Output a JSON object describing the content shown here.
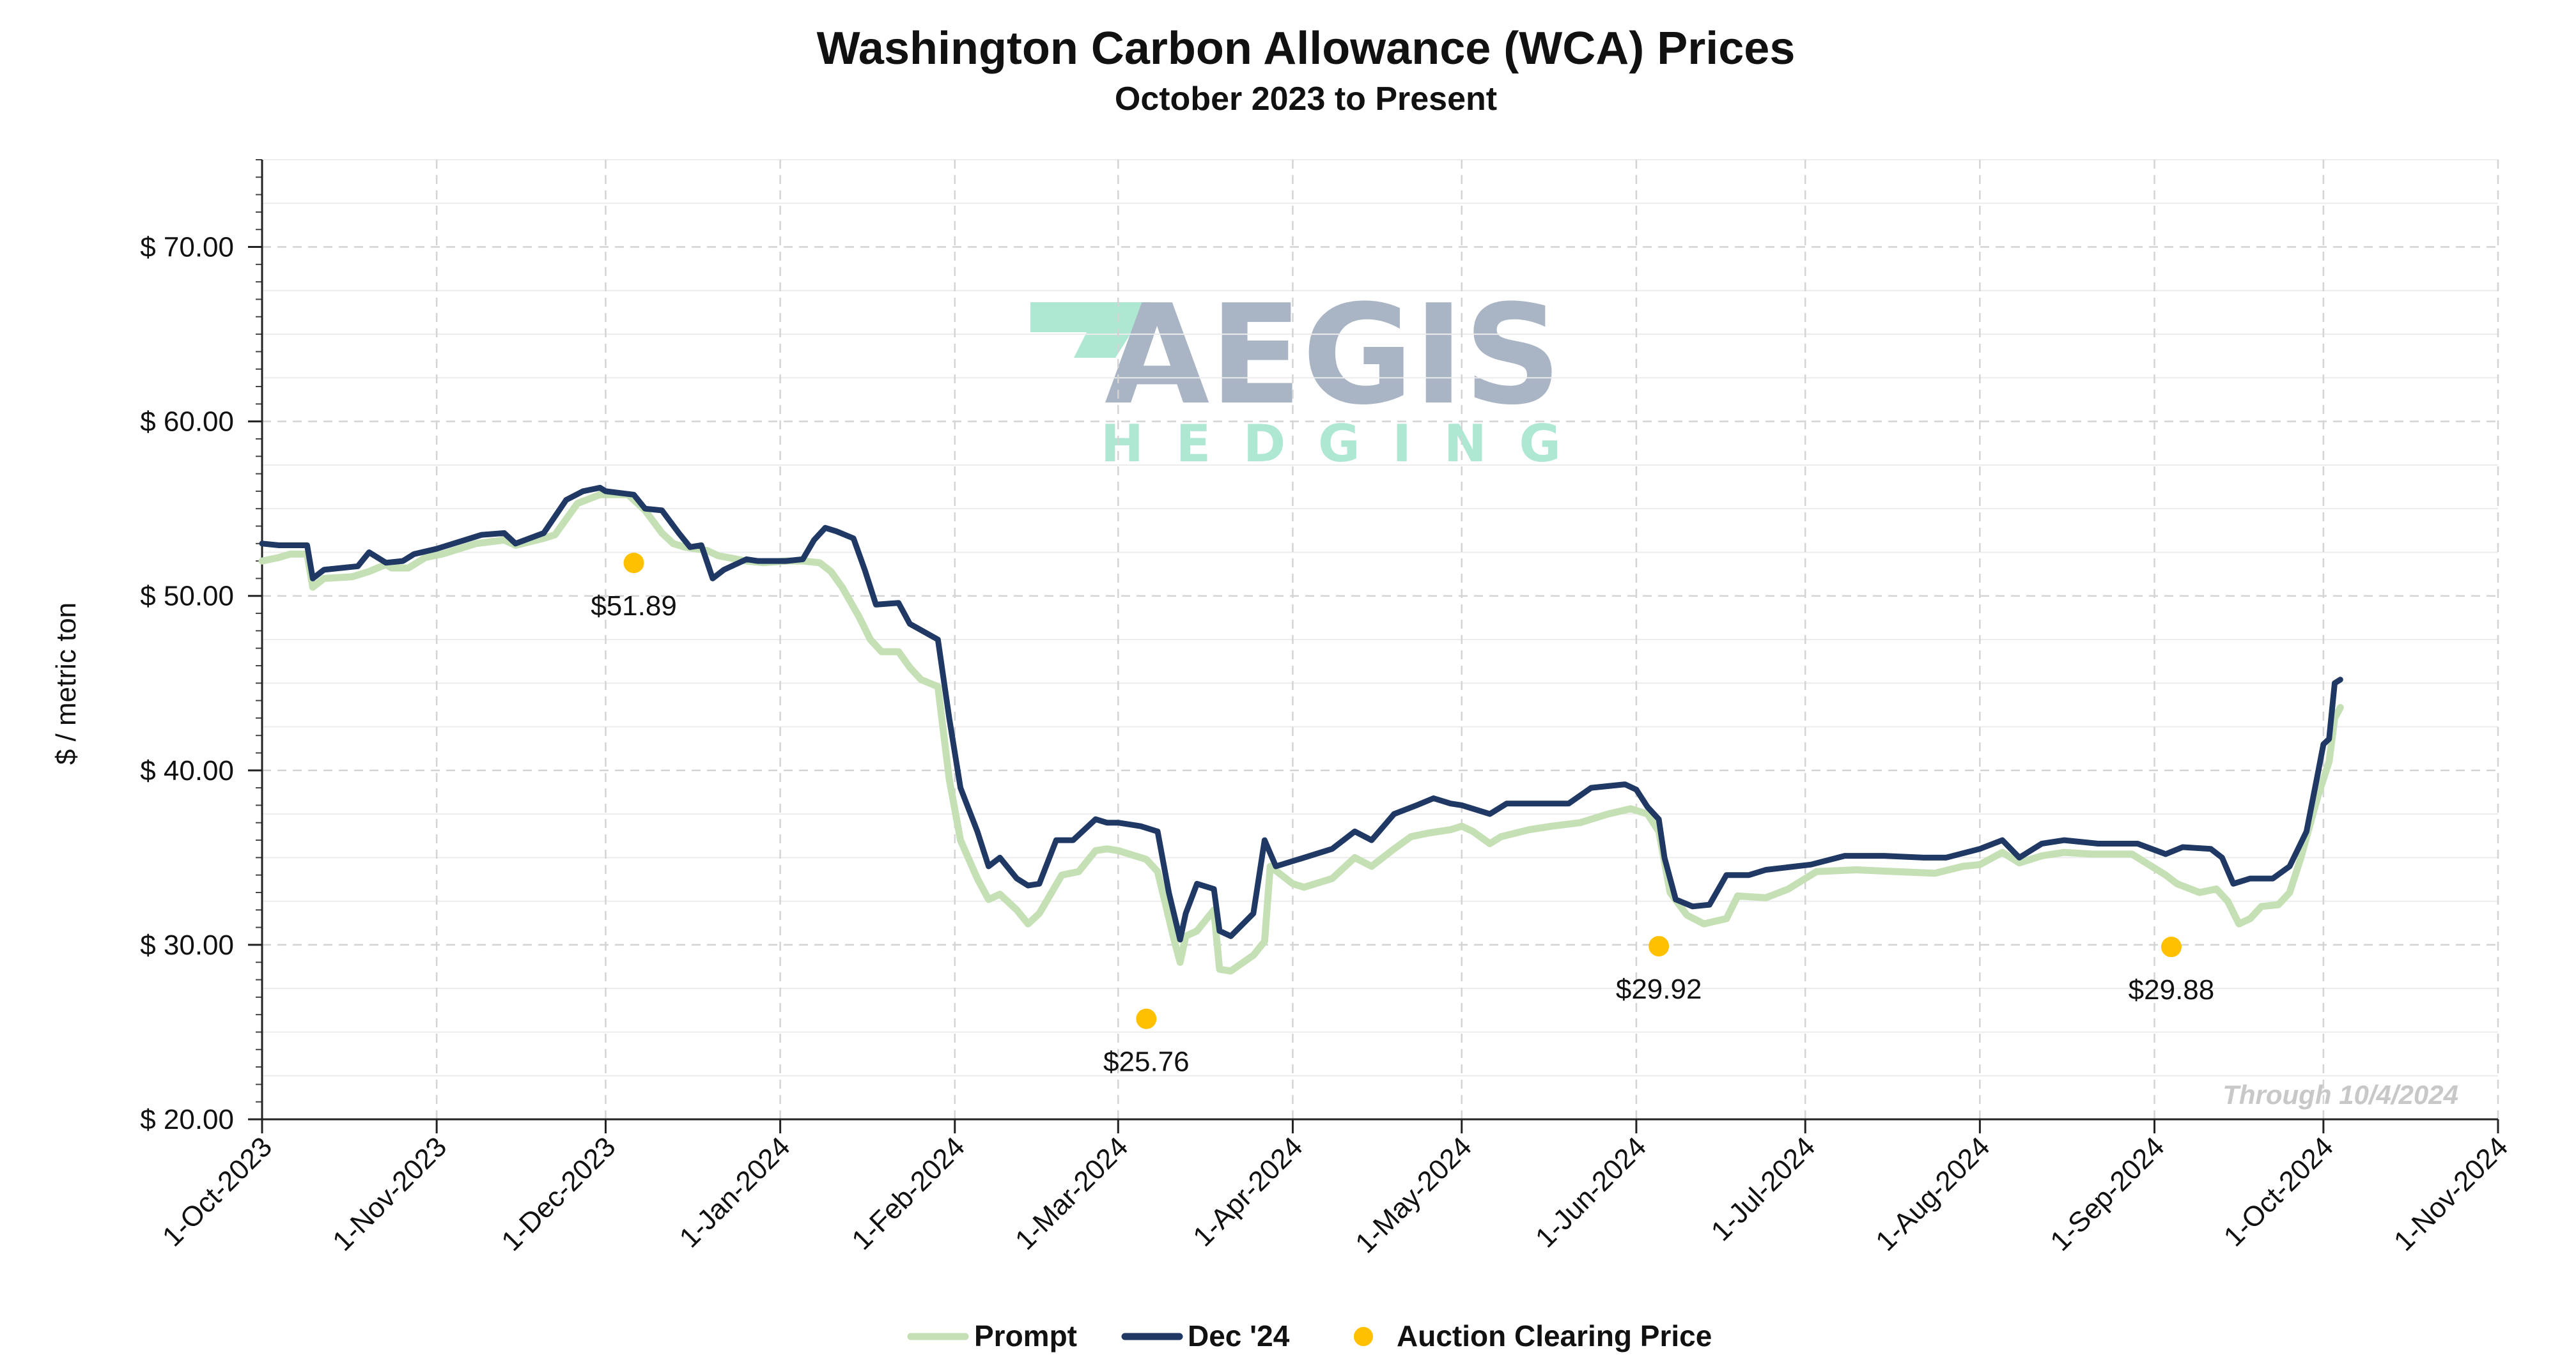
{
  "chart_data": {
    "type": "line",
    "title": "Washington Carbon Allowance (WCA) Prices",
    "subtitle": "October 2023 to Present",
    "ylabel": "$ / metric ton",
    "xlabel": "",
    "ylim": [
      20,
      75
    ],
    "xlim": [
      "2023-10-01",
      "2024-11-01"
    ],
    "y_ticks": [
      20,
      30,
      40,
      50,
      60,
      70
    ],
    "y_tick_labels": [
      "$ 20.00",
      "$ 30.00",
      "$ 40.00",
      "$ 50.00",
      "$ 60.00",
      "$ 70.00"
    ],
    "x_ticks": [
      "2023-10-01",
      "2023-11-01",
      "2023-12-01",
      "2024-01-01",
      "2024-02-01",
      "2024-03-01",
      "2024-04-01",
      "2024-05-01",
      "2024-06-01",
      "2024-07-01",
      "2024-08-01",
      "2024-09-01",
      "2024-10-01",
      "2024-11-01"
    ],
    "x_tick_labels": [
      "1-Oct-2023",
      "1-Nov-2023",
      "1-Dec-2023",
      "1-Jan-2024",
      "1-Feb-2024",
      "1-Mar-2024",
      "1-Apr-2024",
      "1-May-2024",
      "1-Jun-2024",
      "1-Jul-2024",
      "1-Aug-2024",
      "1-Sep-2024",
      "1-Oct-2024",
      "1-Nov-2024"
    ],
    "grid": true,
    "legend_position": "bottom-center",
    "annotation": "Through 10/4/2024",
    "series": [
      {
        "name": "Prompt",
        "color": "#c5e0b4",
        "points": [
          [
            "2023-10-01",
            52.0
          ],
          [
            "2023-10-04",
            52.2
          ],
          [
            "2023-10-06",
            52.4
          ],
          [
            "2023-10-09",
            52.4
          ],
          [
            "2023-10-10",
            50.5
          ],
          [
            "2023-10-12",
            51.0
          ],
          [
            "2023-10-17",
            51.1
          ],
          [
            "2023-10-20",
            51.4
          ],
          [
            "2023-10-23",
            51.8
          ],
          [
            "2023-10-24",
            51.6
          ],
          [
            "2023-10-27",
            51.6
          ],
          [
            "2023-10-30",
            52.2
          ],
          [
            "2023-11-02",
            52.4
          ],
          [
            "2023-11-06",
            52.8
          ],
          [
            "2023-11-08",
            53.0
          ],
          [
            "2023-11-13",
            53.2
          ],
          [
            "2023-11-15",
            52.9
          ],
          [
            "2023-11-20",
            53.3
          ],
          [
            "2023-11-22",
            53.5
          ],
          [
            "2023-11-26",
            55.3
          ],
          [
            "2023-11-30",
            55.8
          ],
          [
            "2023-12-05",
            55.8
          ],
          [
            "2023-12-08",
            54.9
          ],
          [
            "2023-12-11",
            53.6
          ],
          [
            "2023-12-13",
            53.0
          ],
          [
            "2023-12-15",
            52.8
          ],
          [
            "2023-12-19",
            52.6
          ],
          [
            "2023-12-21",
            52.3
          ],
          [
            "2023-12-26",
            52.0
          ],
          [
            "2023-12-29",
            51.9
          ],
          [
            "2024-01-02",
            52.0
          ],
          [
            "2024-01-05",
            52.0
          ],
          [
            "2024-01-08",
            51.9
          ],
          [
            "2024-01-10",
            51.4
          ],
          [
            "2024-01-12",
            50.5
          ],
          [
            "2024-01-15",
            48.8
          ],
          [
            "2024-01-17",
            47.5
          ],
          [
            "2024-01-19",
            46.8
          ],
          [
            "2024-01-22",
            46.8
          ],
          [
            "2024-01-24",
            45.9
          ],
          [
            "2024-01-26",
            45.2
          ],
          [
            "2024-01-29",
            44.8
          ],
          [
            "2024-01-31",
            39.5
          ],
          [
            "2024-02-02",
            36.0
          ],
          [
            "2024-02-05",
            33.8
          ],
          [
            "2024-02-07",
            32.6
          ],
          [
            "2024-02-09",
            32.9
          ],
          [
            "2024-02-12",
            32.0
          ],
          [
            "2024-02-14",
            31.2
          ],
          [
            "2024-02-16",
            31.8
          ],
          [
            "2024-02-20",
            34.0
          ],
          [
            "2024-02-23",
            34.2
          ],
          [
            "2024-02-26",
            35.4
          ],
          [
            "2024-02-28",
            35.5
          ],
          [
            "2024-03-01",
            35.4
          ],
          [
            "2024-03-04",
            35.1
          ],
          [
            "2024-03-06",
            34.9
          ],
          [
            "2024-03-08",
            34.2
          ],
          [
            "2024-03-11",
            30.2
          ],
          [
            "2024-03-12",
            29.0
          ],
          [
            "2024-03-13",
            30.5
          ],
          [
            "2024-03-15",
            30.8
          ],
          [
            "2024-03-18",
            32.0
          ],
          [
            "2024-03-19",
            28.6
          ],
          [
            "2024-03-21",
            28.5
          ],
          [
            "2024-03-25",
            29.4
          ],
          [
            "2024-03-27",
            30.2
          ],
          [
            "2024-03-28",
            34.5
          ],
          [
            "2024-04-01",
            33.5
          ],
          [
            "2024-04-03",
            33.3
          ],
          [
            "2024-04-08",
            33.8
          ],
          [
            "2024-04-12",
            35.0
          ],
          [
            "2024-04-15",
            34.5
          ],
          [
            "2024-04-19",
            35.5
          ],
          [
            "2024-04-22",
            36.2
          ],
          [
            "2024-04-25",
            36.4
          ],
          [
            "2024-04-29",
            36.6
          ],
          [
            "2024-05-01",
            36.8
          ],
          [
            "2024-05-03",
            36.5
          ],
          [
            "2024-05-06",
            35.8
          ],
          [
            "2024-05-08",
            36.2
          ],
          [
            "2024-05-13",
            36.6
          ],
          [
            "2024-05-17",
            36.8
          ],
          [
            "2024-05-22",
            37.0
          ],
          [
            "2024-05-27",
            37.5
          ],
          [
            "2024-05-31",
            37.8
          ],
          [
            "2024-06-03",
            37.5
          ],
          [
            "2024-06-05",
            36.5
          ],
          [
            "2024-06-07",
            33.0
          ],
          [
            "2024-06-10",
            31.7
          ],
          [
            "2024-06-13",
            31.2
          ],
          [
            "2024-06-17",
            31.5
          ],
          [
            "2024-06-19",
            32.8
          ],
          [
            "2024-06-24",
            32.7
          ],
          [
            "2024-06-28",
            33.2
          ],
          [
            "2024-07-03",
            34.2
          ],
          [
            "2024-07-10",
            34.3
          ],
          [
            "2024-07-17",
            34.2
          ],
          [
            "2024-07-24",
            34.1
          ],
          [
            "2024-07-29",
            34.5
          ],
          [
            "2024-08-01",
            34.6
          ],
          [
            "2024-08-05",
            35.3
          ],
          [
            "2024-08-08",
            34.7
          ],
          [
            "2024-08-12",
            35.1
          ],
          [
            "2024-08-16",
            35.3
          ],
          [
            "2024-08-21",
            35.2
          ],
          [
            "2024-08-28",
            35.2
          ],
          [
            "2024-09-03",
            34.0
          ],
          [
            "2024-09-05",
            33.5
          ],
          [
            "2024-09-09",
            33.0
          ],
          [
            "2024-09-12",
            33.2
          ],
          [
            "2024-09-14",
            32.5
          ],
          [
            "2024-09-16",
            31.2
          ],
          [
            "2024-09-18",
            31.5
          ],
          [
            "2024-09-20",
            32.2
          ],
          [
            "2024-09-23",
            32.3
          ],
          [
            "2024-09-25",
            33.0
          ],
          [
            "2024-09-27",
            35.0
          ],
          [
            "2024-09-30",
            38.5
          ],
          [
            "2024-10-02",
            40.5
          ],
          [
            "2024-10-03",
            43.0
          ],
          [
            "2024-10-04",
            43.6
          ]
        ]
      },
      {
        "name": "Dec '24",
        "color": "#1f3864",
        "points": [
          [
            "2023-10-01",
            53.0
          ],
          [
            "2023-10-04",
            52.9
          ],
          [
            "2023-10-09",
            52.9
          ],
          [
            "2023-10-10",
            51.0
          ],
          [
            "2023-10-12",
            51.5
          ],
          [
            "2023-10-18",
            51.7
          ],
          [
            "2023-10-20",
            52.5
          ],
          [
            "2023-10-23",
            51.9
          ],
          [
            "2023-10-26",
            52.0
          ],
          [
            "2023-10-28",
            52.4
          ],
          [
            "2023-11-01",
            52.7
          ],
          [
            "2023-11-06",
            53.2
          ],
          [
            "2023-11-09",
            53.5
          ],
          [
            "2023-11-13",
            53.6
          ],
          [
            "2023-11-15",
            53.0
          ],
          [
            "2023-11-20",
            53.6
          ],
          [
            "2023-11-24",
            55.5
          ],
          [
            "2023-11-27",
            56.0
          ],
          [
            "2023-11-30",
            56.2
          ],
          [
            "2023-12-01",
            56.0
          ],
          [
            "2023-12-06",
            55.8
          ],
          [
            "2023-12-08",
            55.0
          ],
          [
            "2023-12-11",
            54.9
          ],
          [
            "2023-12-14",
            53.6
          ],
          [
            "2023-12-16",
            52.8
          ],
          [
            "2023-12-18",
            52.9
          ],
          [
            "2023-12-20",
            51.0
          ],
          [
            "2023-12-22",
            51.5
          ],
          [
            "2023-12-26",
            52.1
          ],
          [
            "2023-12-28",
            52.0
          ],
          [
            "2024-01-02",
            52.0
          ],
          [
            "2024-01-05",
            52.1
          ],
          [
            "2024-01-07",
            53.2
          ],
          [
            "2024-01-09",
            53.9
          ],
          [
            "2024-01-11",
            53.7
          ],
          [
            "2024-01-14",
            53.3
          ],
          [
            "2024-01-16",
            51.5
          ],
          [
            "2024-01-18",
            49.5
          ],
          [
            "2024-01-22",
            49.6
          ],
          [
            "2024-01-24",
            48.4
          ],
          [
            "2024-01-29",
            47.5
          ],
          [
            "2024-01-31",
            43.0
          ],
          [
            "2024-02-02",
            39.0
          ],
          [
            "2024-02-05",
            36.5
          ],
          [
            "2024-02-07",
            34.5
          ],
          [
            "2024-02-09",
            35.0
          ],
          [
            "2024-02-12",
            33.8
          ],
          [
            "2024-02-14",
            33.4
          ],
          [
            "2024-02-16",
            33.5
          ],
          [
            "2024-02-19",
            36.0
          ],
          [
            "2024-02-22",
            36.0
          ],
          [
            "2024-02-26",
            37.2
          ],
          [
            "2024-02-28",
            37.0
          ],
          [
            "2024-03-01",
            37.0
          ],
          [
            "2024-03-05",
            36.8
          ],
          [
            "2024-03-08",
            36.5
          ],
          [
            "2024-03-10",
            33.0
          ],
          [
            "2024-03-12",
            30.3
          ],
          [
            "2024-03-13",
            31.8
          ],
          [
            "2024-03-15",
            33.5
          ],
          [
            "2024-03-18",
            33.2
          ],
          [
            "2024-03-19",
            30.8
          ],
          [
            "2024-03-21",
            30.5
          ],
          [
            "2024-03-25",
            31.8
          ],
          [
            "2024-03-27",
            36.0
          ],
          [
            "2024-03-29",
            34.5
          ],
          [
            "2024-04-03",
            35.0
          ],
          [
            "2024-04-08",
            35.5
          ],
          [
            "2024-04-12",
            36.5
          ],
          [
            "2024-04-15",
            36.0
          ],
          [
            "2024-04-19",
            37.5
          ],
          [
            "2024-04-23",
            38.0
          ],
          [
            "2024-04-26",
            38.4
          ],
          [
            "2024-04-29",
            38.1
          ],
          [
            "2024-05-01",
            38.0
          ],
          [
            "2024-05-06",
            37.5
          ],
          [
            "2024-05-09",
            38.1
          ],
          [
            "2024-05-15",
            38.1
          ],
          [
            "2024-05-20",
            38.1
          ],
          [
            "2024-05-24",
            39.0
          ],
          [
            "2024-05-30",
            39.2
          ],
          [
            "2024-06-01",
            38.9
          ],
          [
            "2024-06-03",
            37.9
          ],
          [
            "2024-06-05",
            37.2
          ],
          [
            "2024-06-06",
            35.0
          ],
          [
            "2024-06-08",
            32.6
          ],
          [
            "2024-06-11",
            32.2
          ],
          [
            "2024-06-14",
            32.3
          ],
          [
            "2024-06-17",
            34.0
          ],
          [
            "2024-06-21",
            34.0
          ],
          [
            "2024-06-24",
            34.3
          ],
          [
            "2024-07-02",
            34.6
          ],
          [
            "2024-07-08",
            35.1
          ],
          [
            "2024-07-15",
            35.1
          ],
          [
            "2024-07-22",
            35.0
          ],
          [
            "2024-07-26",
            35.0
          ],
          [
            "2024-08-01",
            35.5
          ],
          [
            "2024-08-05",
            36.0
          ],
          [
            "2024-08-08",
            35.0
          ],
          [
            "2024-08-12",
            35.8
          ],
          [
            "2024-08-16",
            36.0
          ],
          [
            "2024-08-22",
            35.8
          ],
          [
            "2024-08-29",
            35.8
          ],
          [
            "2024-09-03",
            35.2
          ],
          [
            "2024-09-06",
            35.6
          ],
          [
            "2024-09-11",
            35.5
          ],
          [
            "2024-09-13",
            35.0
          ],
          [
            "2024-09-15",
            33.5
          ],
          [
            "2024-09-18",
            33.8
          ],
          [
            "2024-09-22",
            33.8
          ],
          [
            "2024-09-25",
            34.5
          ],
          [
            "2024-09-28",
            36.5
          ],
          [
            "2024-09-30",
            39.8
          ],
          [
            "2024-10-01",
            41.5
          ],
          [
            "2024-10-02",
            41.8
          ],
          [
            "2024-10-03",
            45.0
          ],
          [
            "2024-10-04",
            45.2
          ]
        ]
      }
    ],
    "auction_clearing_price": {
      "name": "Auction Clearing Price",
      "color": "#ffc000",
      "points": [
        {
          "date": "2023-12-06",
          "value": 51.89,
          "label": "$51.89"
        },
        {
          "date": "2024-03-06",
          "value": 25.76,
          "label": "$25.76"
        },
        {
          "date": "2024-06-05",
          "value": 29.92,
          "label": "$29.92"
        },
        {
          "date": "2024-09-04",
          "value": 29.88,
          "label": "$29.88"
        }
      ]
    }
  },
  "legend": {
    "items": [
      "Prompt",
      "Dec '24",
      "Auction Clearing Price"
    ]
  },
  "watermark": {
    "logo_text": "AEGIS",
    "logo_subtext": "HEDGING"
  }
}
